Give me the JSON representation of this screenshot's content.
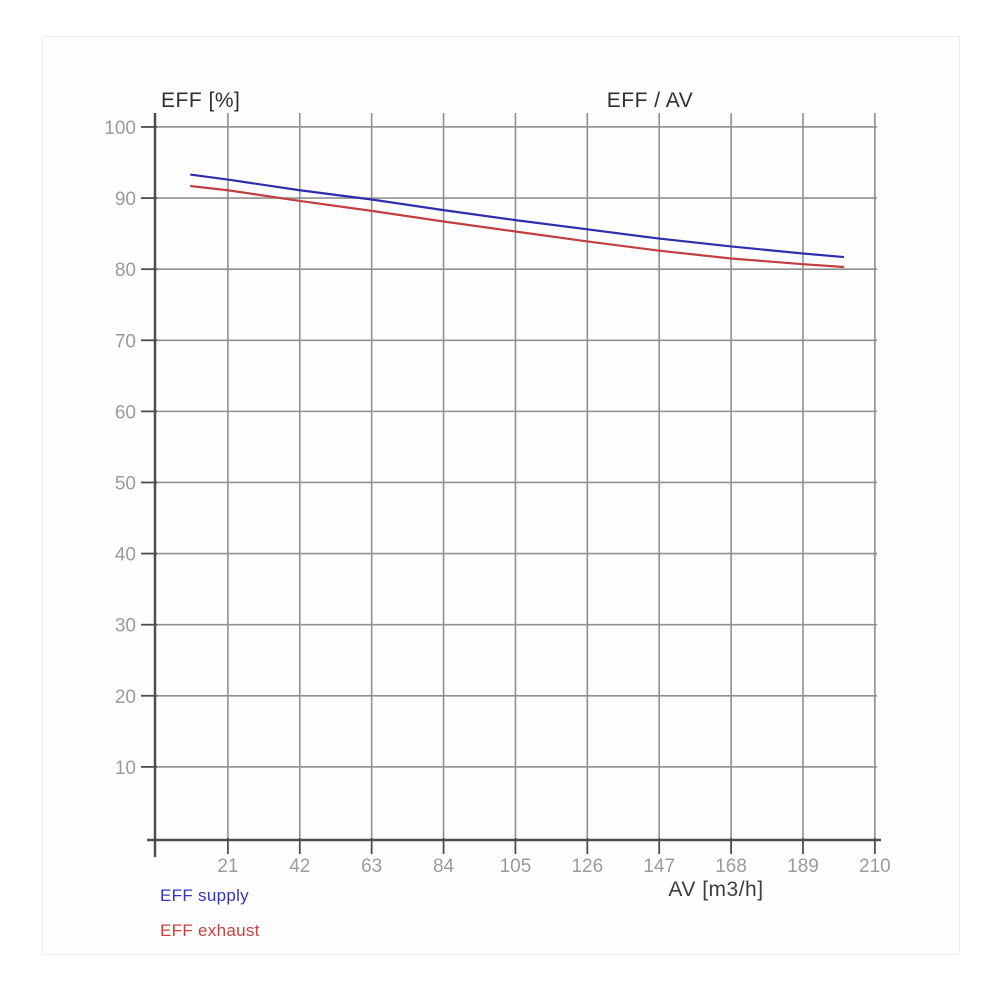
{
  "chart_data": {
    "type": "line",
    "title": "EFF / AV",
    "ylabel": "EFF [%]",
    "xlabel": "AV [m3/h]",
    "x_ticks": [
      21,
      42,
      63,
      84,
      105,
      126,
      147,
      168,
      189,
      210
    ],
    "y_ticks": [
      10,
      20,
      30,
      40,
      50,
      60,
      70,
      80,
      90,
      100
    ],
    "xlim": [
      0,
      211.5
    ],
    "ylim": [
      0,
      101.4
    ],
    "grid": true,
    "legend_position": "bottom-left",
    "series": [
      {
        "name": "EFF supply",
        "color": "#2e2eac",
        "x": [
          10,
          21,
          42,
          63,
          84,
          105,
          126,
          147,
          168,
          189,
          201
        ],
        "y": [
          93.3,
          92.6,
          91.1,
          89.8,
          88.3,
          86.9,
          85.6,
          84.3,
          83.2,
          82.2,
          81.7
        ]
      },
      {
        "name": "EFF exhaust",
        "color": "#c04040",
        "x": [
          10,
          21,
          42,
          63,
          84,
          105,
          126,
          147,
          168,
          189,
          201
        ],
        "y": [
          91.7,
          91.1,
          89.6,
          88.2,
          86.7,
          85.3,
          83.9,
          82.6,
          81.5,
          80.7,
          80.3
        ]
      }
    ],
    "colors": {
      "gridline": "#909090",
      "axis": "#4d4d4d",
      "tick_label": "#9b9b9b",
      "title_text": "#2f2f2f",
      "legend_supply": "#3434bd",
      "legend_exhaust": "#cc4040"
    }
  }
}
